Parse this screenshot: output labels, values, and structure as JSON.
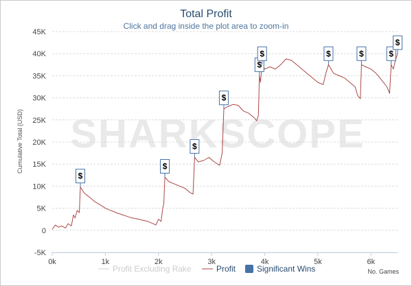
{
  "chart_data": {
    "type": "line",
    "title": "Total Profit",
    "subtitle": "Click and drag inside the plot area to zoom-in",
    "ylabel": "Cumulative Total (USD)",
    "xlabel": "No. Games",
    "xlim": [
      0,
      6500
    ],
    "ylim": [
      -5000,
      45000
    ],
    "x_ticks": [
      {
        "value": 0,
        "label": "0k"
      },
      {
        "value": 1000,
        "label": "1k"
      },
      {
        "value": 2000,
        "label": "2k"
      },
      {
        "value": 3000,
        "label": "3k"
      },
      {
        "value": 4000,
        "label": "4k"
      },
      {
        "value": 5000,
        "label": "5k"
      },
      {
        "value": 6000,
        "label": "6k"
      }
    ],
    "y_ticks": [
      {
        "value": -5000,
        "label": "-5K"
      },
      {
        "value": 0,
        "label": "0"
      },
      {
        "value": 5000,
        "label": "5K"
      },
      {
        "value": 10000,
        "label": "10K"
      },
      {
        "value": 15000,
        "label": "15K"
      },
      {
        "value": 20000,
        "label": "20K"
      },
      {
        "value": 25000,
        "label": "25K"
      },
      {
        "value": 30000,
        "label": "30K"
      },
      {
        "value": 35000,
        "label": "35K"
      },
      {
        "value": 40000,
        "label": "40K"
      },
      {
        "value": 45000,
        "label": "45K"
      }
    ],
    "grid": true,
    "legend_position": "bottom",
    "series": [
      {
        "name": "Profit",
        "color": "#aa4643",
        "points": [
          [
            0,
            200
          ],
          [
            60,
            1200
          ],
          [
            120,
            700
          ],
          [
            180,
            1000
          ],
          [
            250,
            500
          ],
          [
            300,
            1500
          ],
          [
            360,
            1000
          ],
          [
            400,
            3500
          ],
          [
            430,
            2800
          ],
          [
            470,
            4500
          ],
          [
            510,
            4000
          ],
          [
            530,
            9800
          ],
          [
            600,
            8500
          ],
          [
            700,
            7500
          ],
          [
            800,
            6500
          ],
          [
            900,
            5800
          ],
          [
            1000,
            5000
          ],
          [
            1100,
            4500
          ],
          [
            1200,
            4000
          ],
          [
            1300,
            3600
          ],
          [
            1400,
            3200
          ],
          [
            1500,
            2800
          ],
          [
            1600,
            2600
          ],
          [
            1700,
            2300
          ],
          [
            1800,
            2000
          ],
          [
            1900,
            1500
          ],
          [
            1950,
            1200
          ],
          [
            2000,
            2500
          ],
          [
            2050,
            2000
          ],
          [
            2080,
            5000
          ],
          [
            2100,
            6000
          ],
          [
            2120,
            12000
          ],
          [
            2200,
            11000
          ],
          [
            2300,
            10500
          ],
          [
            2400,
            10000
          ],
          [
            2500,
            9500
          ],
          [
            2600,
            8500
          ],
          [
            2650,
            8200
          ],
          [
            2680,
            16500
          ],
          [
            2750,
            15500
          ],
          [
            2850,
            15800
          ],
          [
            2950,
            16500
          ],
          [
            3050,
            15500
          ],
          [
            3150,
            14700
          ],
          [
            3200,
            17500
          ],
          [
            3230,
            27500
          ],
          [
            3300,
            28000
          ],
          [
            3400,
            28500
          ],
          [
            3500,
            28300
          ],
          [
            3600,
            27000
          ],
          [
            3700,
            26500
          ],
          [
            3800,
            25500
          ],
          [
            3850,
            24800
          ],
          [
            3880,
            26000
          ],
          [
            3900,
            35000
          ],
          [
            3920,
            33500
          ],
          [
            3950,
            37500
          ],
          [
            4000,
            36500
          ],
          [
            4100,
            37000
          ],
          [
            4200,
            36500
          ],
          [
            4300,
            37500
          ],
          [
            4400,
            38800
          ],
          [
            4500,
            38500
          ],
          [
            4600,
            37500
          ],
          [
            4700,
            36500
          ],
          [
            4800,
            35500
          ],
          [
            4900,
            34500
          ],
          [
            5000,
            33500
          ],
          [
            5100,
            33000
          ],
          [
            5150,
            35500
          ],
          [
            5200,
            37500
          ],
          [
            5300,
            35500
          ],
          [
            5400,
            35000
          ],
          [
            5500,
            34500
          ],
          [
            5600,
            33500
          ],
          [
            5700,
            32500
          ],
          [
            5750,
            30500
          ],
          [
            5800,
            29800
          ],
          [
            5820,
            37500
          ],
          [
            5900,
            37000
          ],
          [
            6000,
            36500
          ],
          [
            6100,
            35500
          ],
          [
            6200,
            34000
          ],
          [
            6300,
            32500
          ],
          [
            6350,
            31000
          ],
          [
            6380,
            37500
          ],
          [
            6420,
            36500
          ],
          [
            6460,
            38500
          ],
          [
            6500,
            40000
          ]
        ]
      },
      {
        "name": "Profit Excluding Rake",
        "color": "#c0c0c0",
        "points": []
      }
    ],
    "significant_wins": [
      {
        "x": 530,
        "y": 9800,
        "label": "$"
      },
      {
        "x": 2120,
        "y": 12000,
        "label": "$"
      },
      {
        "x": 2680,
        "y": 16500,
        "label": "$"
      },
      {
        "x": 3230,
        "y": 27500,
        "label": "$"
      },
      {
        "x": 3900,
        "y": 35000,
        "label": "$"
      },
      {
        "x": 3950,
        "y": 37500,
        "label": "$"
      },
      {
        "x": 5200,
        "y": 37500,
        "label": "$"
      },
      {
        "x": 5820,
        "y": 37500,
        "label": "$"
      },
      {
        "x": 6380,
        "y": 37500,
        "label": "$"
      },
      {
        "x": 6500,
        "y": 40000,
        "label": "$"
      }
    ],
    "legend": [
      {
        "name": "Profit Excluding Rake",
        "color": "#c0c0c0",
        "state": "hidden",
        "symbol": "line"
      },
      {
        "name": "Profit",
        "color": "#aa4643",
        "state": "visible",
        "symbol": "line"
      },
      {
        "name": "Significant Wins",
        "color": "#4572a7",
        "state": "visible",
        "symbol": "square"
      }
    ],
    "watermark": "SHARKSCOPE"
  }
}
